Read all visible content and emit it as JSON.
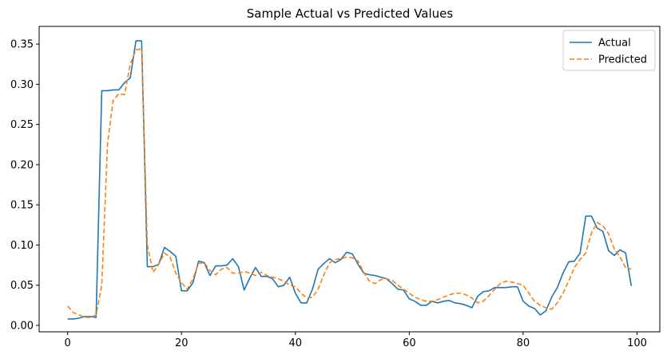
{
  "chart_data": {
    "type": "line",
    "title": "Sample Actual vs Predicted Values",
    "xlabel": "",
    "ylabel": "",
    "xlim": [
      -5,
      104
    ],
    "ylim": [
      -0.008,
      0.372
    ],
    "xticks": [
      0,
      20,
      40,
      60,
      80,
      100
    ],
    "yticks": [
      0.0,
      0.05,
      0.1,
      0.15,
      0.2,
      0.25,
      0.3,
      0.35
    ],
    "xtick_labels": [
      "0",
      "20",
      "40",
      "60",
      "80",
      "100"
    ],
    "ytick_labels": [
      "0.00",
      "0.05",
      "0.10",
      "0.15",
      "0.20",
      "0.25",
      "0.30",
      "0.35"
    ],
    "grid": false,
    "legend_position": "top-right",
    "x": [
      0,
      1,
      2,
      3,
      4,
      5,
      6,
      7,
      8,
      9,
      10,
      11,
      12,
      13,
      14,
      15,
      16,
      17,
      18,
      19,
      20,
      21,
      22,
      23,
      24,
      25,
      26,
      27,
      28,
      29,
      30,
      31,
      32,
      33,
      34,
      35,
      36,
      37,
      38,
      39,
      40,
      41,
      42,
      43,
      44,
      45,
      46,
      47,
      48,
      49,
      50,
      51,
      52,
      53,
      54,
      55,
      56,
      57,
      58,
      59,
      60,
      61,
      62,
      63,
      64,
      65,
      66,
      67,
      68,
      69,
      70,
      71,
      72,
      73,
      74,
      75,
      76,
      77,
      78,
      79,
      80,
      81,
      82,
      83,
      84,
      85,
      86,
      87,
      88,
      89,
      90,
      91,
      92,
      93,
      94,
      95,
      96,
      97,
      98,
      99
    ],
    "series": [
      {
        "name": "Actual",
        "color": "#1f77b4",
        "dashed": false,
        "values": [
          0.008,
          0.008,
          0.009,
          0.011,
          0.011,
          0.01,
          0.292,
          0.292,
          0.293,
          0.293,
          0.302,
          0.308,
          0.354,
          0.354,
          0.073,
          0.073,
          0.076,
          0.097,
          0.092,
          0.086,
          0.043,
          0.043,
          0.053,
          0.08,
          0.078,
          0.062,
          0.074,
          0.074,
          0.075,
          0.083,
          0.073,
          0.044,
          0.059,
          0.072,
          0.061,
          0.061,
          0.058,
          0.048,
          0.05,
          0.06,
          0.04,
          0.028,
          0.028,
          0.045,
          0.07,
          0.077,
          0.083,
          0.078,
          0.082,
          0.091,
          0.089,
          0.076,
          0.065,
          0.063,
          0.062,
          0.06,
          0.058,
          0.052,
          0.045,
          0.044,
          0.033,
          0.03,
          0.025,
          0.025,
          0.03,
          0.028,
          0.03,
          0.031,
          0.028,
          0.027,
          0.025,
          0.022,
          0.036,
          0.042,
          0.043,
          0.047,
          0.047,
          0.047,
          0.048,
          0.048,
          0.03,
          0.024,
          0.021,
          0.013,
          0.018,
          0.035,
          0.047,
          0.065,
          0.079,
          0.08,
          0.09,
          0.136,
          0.136,
          0.121,
          0.117,
          0.093,
          0.087,
          0.094,
          0.09,
          0.049
        ]
      },
      {
        "name": "Predicted",
        "color": "#ff7f0e",
        "dashed": true,
        "values": [
          0.024,
          0.016,
          0.013,
          0.01,
          0.01,
          0.013,
          0.05,
          0.225,
          0.28,
          0.288,
          0.287,
          0.325,
          0.343,
          0.344,
          0.1,
          0.066,
          0.076,
          0.09,
          0.085,
          0.065,
          0.053,
          0.045,
          0.058,
          0.077,
          0.078,
          0.068,
          0.063,
          0.07,
          0.072,
          0.065,
          0.065,
          0.067,
          0.065,
          0.062,
          0.066,
          0.062,
          0.06,
          0.058,
          0.055,
          0.05,
          0.048,
          0.04,
          0.034,
          0.035,
          0.045,
          0.063,
          0.078,
          0.082,
          0.083,
          0.085,
          0.084,
          0.08,
          0.066,
          0.055,
          0.052,
          0.057,
          0.058,
          0.056,
          0.05,
          0.045,
          0.04,
          0.035,
          0.032,
          0.03,
          0.03,
          0.032,
          0.035,
          0.038,
          0.04,
          0.04,
          0.038,
          0.034,
          0.028,
          0.03,
          0.037,
          0.045,
          0.052,
          0.055,
          0.054,
          0.052,
          0.05,
          0.04,
          0.03,
          0.025,
          0.022,
          0.02,
          0.028,
          0.04,
          0.055,
          0.072,
          0.082,
          0.09,
          0.115,
          0.128,
          0.124,
          0.114,
          0.095,
          0.085,
          0.072,
          0.07
        ]
      }
    ]
  }
}
